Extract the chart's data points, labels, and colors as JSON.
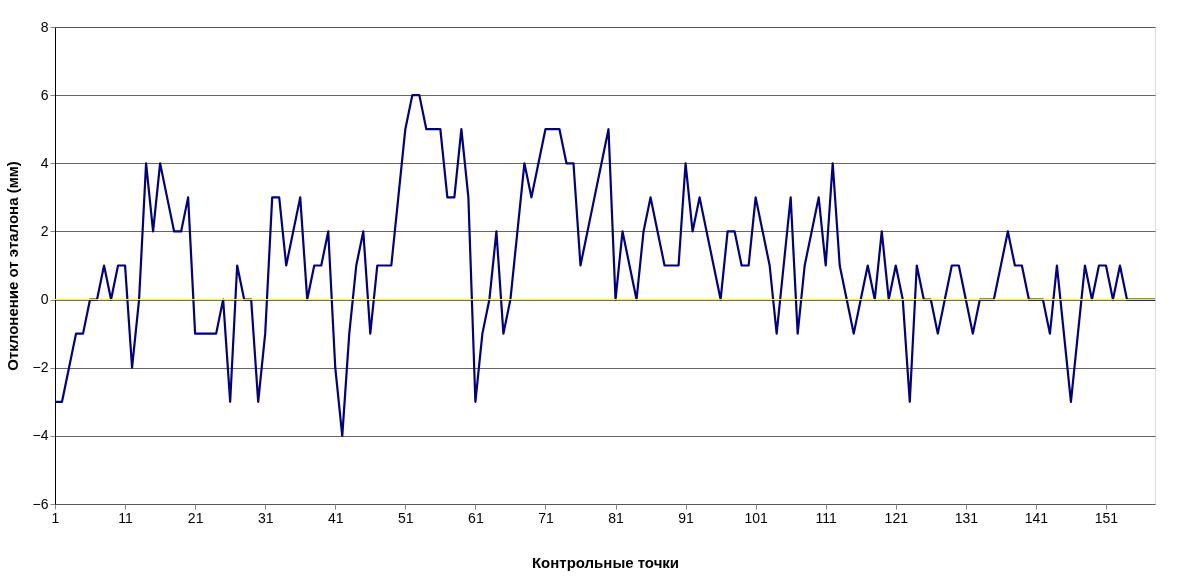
{
  "chart_data": {
    "type": "line",
    "xlabel": "Контрольные точки",
    "ylabel": "Отклонение от эталона (мм)",
    "x": [
      1,
      2,
      3,
      4,
      5,
      6,
      7,
      8,
      9,
      10,
      11,
      12,
      13,
      14,
      15,
      16,
      17,
      18,
      19,
      20,
      21,
      22,
      23,
      24,
      25,
      26,
      27,
      28,
      29,
      30,
      31,
      32,
      33,
      34,
      35,
      36,
      37,
      38,
      39,
      40,
      41,
      42,
      43,
      44,
      45,
      46,
      47,
      48,
      49,
      50,
      51,
      52,
      53,
      54,
      55,
      56,
      57,
      58,
      59,
      60,
      61,
      62,
      63,
      64,
      65,
      66,
      67,
      68,
      69,
      70,
      71,
      72,
      73,
      74,
      75,
      76,
      77,
      78,
      79,
      80,
      81,
      82,
      83,
      84,
      85,
      86,
      87,
      88,
      89,
      90,
      91,
      92,
      93,
      94,
      95,
      96,
      97,
      98,
      99,
      100,
      101,
      102,
      103,
      104,
      105,
      106,
      107,
      108,
      109,
      110,
      111,
      112,
      113,
      114,
      115,
      116,
      117,
      118,
      119,
      120,
      121,
      122,
      123,
      124,
      125,
      126,
      127,
      128,
      129,
      130,
      131,
      132,
      133,
      134,
      135,
      136,
      137,
      138,
      139,
      140,
      141,
      142,
      143,
      144,
      145,
      146,
      147,
      148,
      149,
      150,
      151,
      152,
      153,
      154,
      155,
      156,
      157,
      158
    ],
    "series": [
      {
        "color": "#000080",
        "values": [
          -3,
          -3,
          -2,
          -1,
          -1,
          0,
          0,
          1,
          0,
          1,
          1,
          -2,
          0,
          4,
          2,
          4,
          3,
          2,
          2,
          3,
          -1,
          -1,
          -1,
          -1,
          0,
          -3,
          1,
          0,
          0,
          -3,
          -1,
          3,
          3,
          1,
          2,
          3,
          0,
          1,
          1,
          2,
          -2,
          -4,
          -1,
          1,
          2,
          -1,
          1,
          1,
          1,
          3,
          5,
          6,
          6,
          5,
          5,
          5,
          3,
          3,
          5,
          3,
          -3,
          -1,
          0,
          2,
          -1,
          0,
          2,
          4,
          3,
          4,
          5,
          5,
          5,
          4,
          4,
          1,
          2,
          3,
          4,
          5,
          0,
          2,
          1,
          0,
          2,
          3,
          2,
          1,
          1,
          1,
          4,
          2,
          3,
          2,
          1,
          0,
          2,
          2,
          1,
          1,
          3,
          2,
          1,
          -1,
          1,
          3,
          -1,
          1,
          2,
          3,
          1,
          4,
          1,
          0,
          -1,
          0,
          1,
          0,
          2,
          0,
          1,
          0,
          -3,
          1,
          0,
          0,
          -1,
          0,
          1,
          1,
          0,
          -1,
          0,
          0,
          0,
          1,
          2,
          1,
          1,
          0,
          0,
          0,
          -1,
          1,
          -1,
          -3,
          -1,
          1,
          0,
          1,
          1,
          0,
          1,
          0,
          0,
          0,
          0,
          0
        ]
      }
    ],
    "xlim": [
      1,
      158
    ],
    "xticks": [
      1,
      11,
      21,
      31,
      41,
      51,
      61,
      71,
      81,
      91,
      101,
      111,
      121,
      131,
      141,
      151
    ],
    "ylim": [
      -6,
      8
    ],
    "yticks": [
      -6,
      -4,
      -2,
      0,
      2,
      4,
      6,
      8
    ],
    "grid": "y",
    "marker": "none",
    "line_style": "solid",
    "ref_lines": [
      {
        "axis": "y",
        "value": 0,
        "color": "#ffff00"
      }
    ]
  }
}
